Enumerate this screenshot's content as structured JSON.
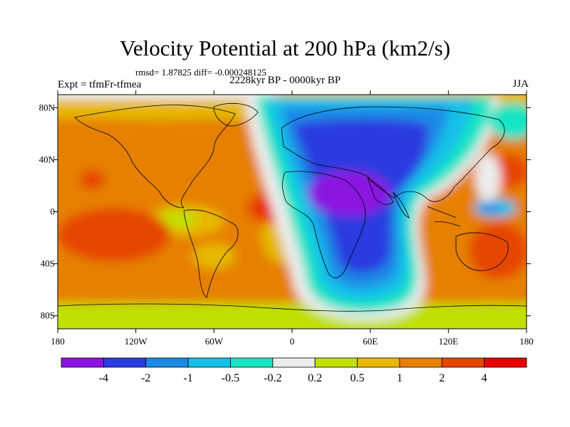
{
  "map": {
    "title": "Velocity Potential at 200 hPa (km2/s)",
    "stats_text": "rmsd= 1.87825 diff= -0.000248125",
    "period_text": "2228kyr BP - 0000kyr BP",
    "expt_text": "Expt = tfmFr-tfmea",
    "season": "JJA",
    "lon_ticks": [
      "180",
      "120W",
      "60W",
      "0",
      "60E",
      "120E",
      "180"
    ],
    "lat_ticks": [
      "80N",
      "40N",
      "0",
      "40S",
      "80S"
    ],
    "lon_tick_values": [
      -180,
      -120,
      -60,
      0,
      60,
      120,
      180
    ],
    "lat_tick_values": [
      80,
      40,
      0,
      -40,
      -80
    ],
    "lon_range": [
      -180,
      180
    ],
    "lat_range": [
      -90,
      90
    ]
  },
  "colorbar": {
    "colors": [
      "#8b14e0",
      "#2a3be0",
      "#1a8ae6",
      "#14c0e8",
      "#18e4c4",
      "#ececec",
      "#c0e000",
      "#e6b800",
      "#e68000",
      "#e64600",
      "#e60000"
    ],
    "labels": [
      "-4",
      "-2",
      "-1",
      "-0.5",
      "-0.2",
      "0.2",
      "0.5",
      "1",
      "2",
      "4"
    ]
  }
}
